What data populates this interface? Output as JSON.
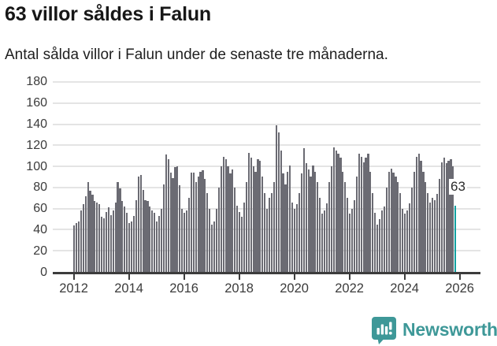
{
  "header": {
    "title": "63 villor såldes i Falun",
    "subtitle": "Antal sålda villor i Falun under de senaste tre månaderna."
  },
  "chart_data": {
    "type": "bar",
    "title": "63 villor såldes i Falun",
    "subtitle": "Antal sålda villor i Falun under de senaste tre månaderna.",
    "x_start": "2012-01",
    "x_end": "2025-11",
    "frequency": "monthly",
    "values": [
      44,
      46,
      48,
      58,
      64,
      72,
      85,
      77,
      73,
      67,
      66,
      64,
      52,
      51,
      57,
      61,
      54,
      58,
      66,
      85,
      79,
      67,
      62,
      56,
      46,
      48,
      53,
      68,
      90,
      92,
      78,
      68,
      67,
      62,
      58,
      56,
      48,
      53,
      60,
      83,
      111,
      107,
      94,
      89,
      99,
      100,
      82,
      60,
      56,
      58,
      70,
      94,
      94,
      85,
      90,
      95,
      96,
      88,
      75,
      60,
      45,
      48,
      60,
      80,
      100,
      109,
      107,
      100,
      93,
      97,
      80,
      63,
      57,
      52,
      66,
      85,
      113,
      108,
      100,
      95,
      107,
      105,
      90,
      75,
      60,
      70,
      75,
      85,
      139,
      132,
      115,
      93,
      83,
      95,
      101,
      66,
      60,
      64,
      75,
      93,
      117,
      103,
      97,
      90,
      101,
      95,
      85,
      70,
      55,
      58,
      65,
      85,
      100,
      118,
      115,
      112,
      108,
      95,
      85,
      70,
      55,
      60,
      68,
      90,
      112,
      109,
      104,
      108,
      112,
      95,
      75,
      56,
      45,
      50,
      58,
      62,
      80,
      95,
      98,
      94,
      90,
      85,
      75,
      60,
      55,
      58,
      65,
      80,
      95,
      109,
      112,
      105,
      95,
      85,
      75,
      66,
      70,
      68,
      74,
      88,
      104,
      108,
      103,
      105,
      107,
      100,
      63
    ],
    "highlight": {
      "index": 166,
      "value": 63,
      "label": "63"
    },
    "yticks": [
      0,
      20,
      40,
      60,
      80,
      100,
      120,
      140,
      160,
      180
    ],
    "ylim": [
      0,
      180
    ],
    "xtick_years": [
      2012,
      2014,
      2016,
      2018,
      2020,
      2022,
      2024,
      2026
    ],
    "grid": "horizontal",
    "legend": "none",
    "colors": {
      "bar": "#6b6b73",
      "highlight_bar": "#11a0a0",
      "gridline": "#e4e4e4",
      "axis": "#3c3c3c",
      "axis_text": "#3b3b3b"
    }
  },
  "footer": {
    "brand": "Newsworthy",
    "logo_icon": "bar-chart-speech-bubble-icon",
    "brand_color": "#3e9898"
  }
}
